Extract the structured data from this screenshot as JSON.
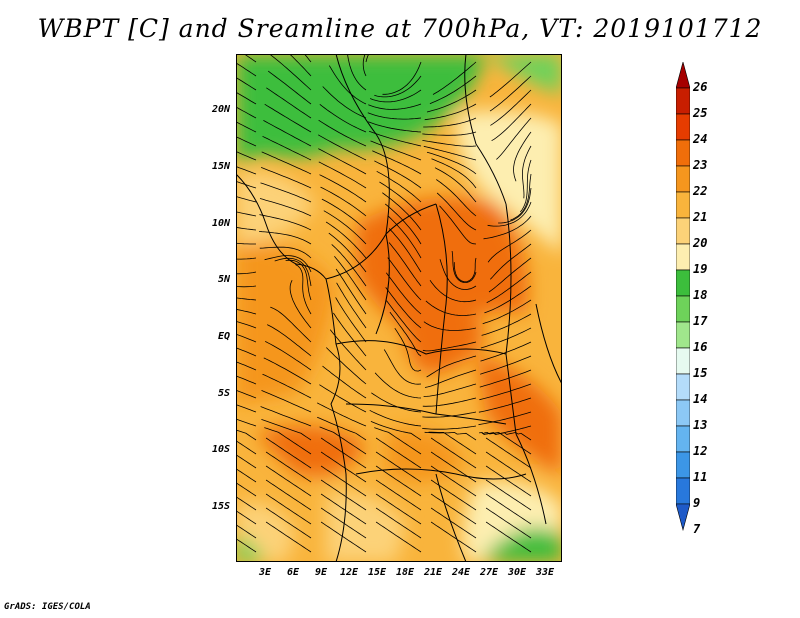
{
  "title": "WBPT [C] and Sreamline at 700hPa, VT: 2019101712",
  "credit": "GrADS: IGES/COLA",
  "map": {
    "variable": "Wet-bulb potential temperature",
    "level": "700hPa",
    "valid_time": "2019101712",
    "lat_labels": [
      "20N",
      "15N",
      "10N",
      "5N",
      "EQ",
      "5S",
      "10S",
      "15S"
    ],
    "lon_labels": [
      "3E",
      "6E",
      "9E",
      "12E",
      "15E",
      "18E",
      "21E",
      "24E",
      "27E",
      "30E",
      "33E"
    ]
  },
  "colorbar": {
    "labels": [
      "26",
      "25",
      "24",
      "23",
      "22",
      "21",
      "20",
      "19",
      "18",
      "17",
      "16",
      "15",
      "14",
      "13",
      "12",
      "11",
      "9",
      "7"
    ],
    "colors": [
      "#a50000",
      "#c81e00",
      "#e63c00",
      "#f06e0a",
      "#f5961e",
      "#f9b43c",
      "#fcd278",
      "#fdeeb0",
      "#3cbe3c",
      "#6ed25a",
      "#a0e68c",
      "#e6faf0",
      "#b4dcfa",
      "#8cc8f5",
      "#64b4f0",
      "#3c96e6",
      "#2878dc",
      "#1e5ac8"
    ]
  }
}
